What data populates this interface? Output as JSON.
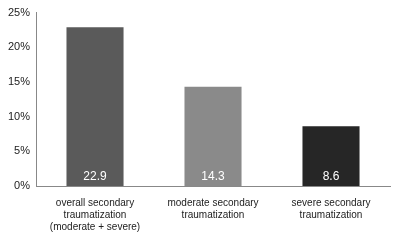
{
  "chart_data": {
    "type": "bar",
    "categories": [
      "overall secondary traumatization (moderate + severe)",
      "moderate secondary traumatization",
      "severe secondary traumatization"
    ],
    "values": [
      22.9,
      14.3,
      8.6
    ],
    "colors": [
      "#5a5a5a",
      "#8a8a8a",
      "#262626"
    ],
    "ylim": [
      0,
      25
    ],
    "yticks": [
      {
        "value": 0,
        "label": "0%"
      },
      {
        "value": 5,
        "label": "5%"
      },
      {
        "value": 10,
        "label": "10%"
      },
      {
        "value": 15,
        "label": "15%"
      },
      {
        "value": 20,
        "label": "20%"
      },
      {
        "value": 25,
        "label": "25%"
      }
    ],
    "grid": false,
    "data_labels": true
  }
}
